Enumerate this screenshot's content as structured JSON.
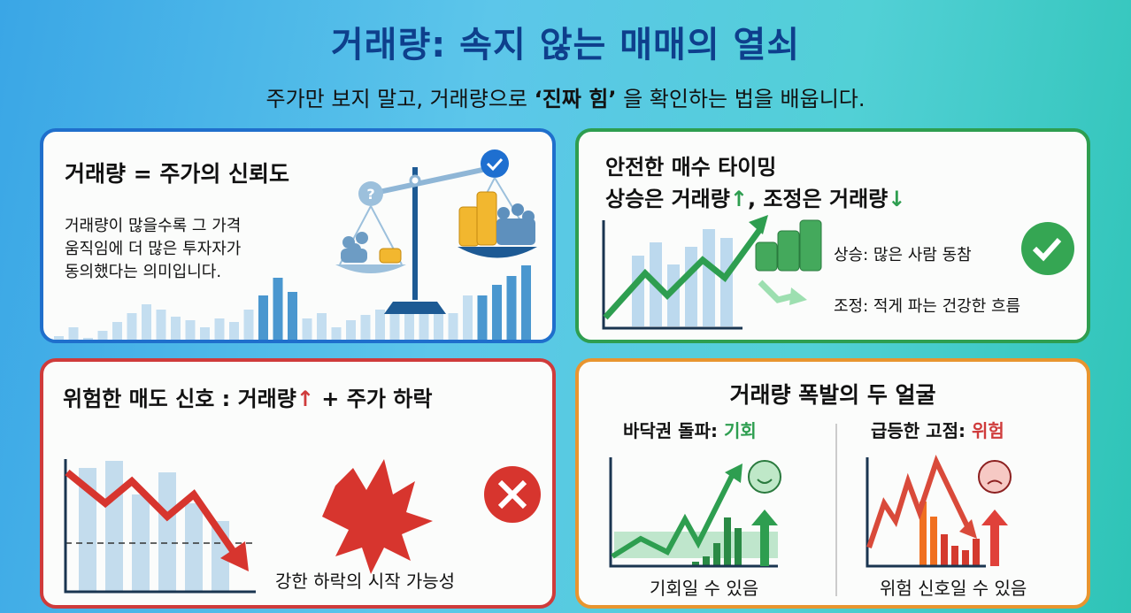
{
  "header": {
    "title": "거래량: 속지 않는 매매의 열쇠",
    "subtitle_pre": "주가만 보지 말고, 거래량으로 ",
    "subtitle_bold": "‘진짜 힘’",
    "subtitle_post": " 을 확인하는 법을 배웁니다."
  },
  "card1": {
    "title": "거래량 = 주가의 신뢰도",
    "body": [
      "거래량이 많을수록 그 가격",
      "움직임에 더 많은 투자자가",
      "동의했다는 의미입니다."
    ],
    "icons": [
      "balance-scale-icon",
      "question-icon",
      "check-icon",
      "people-icon",
      "coins-icon"
    ],
    "color": "#1f6fcc"
  },
  "card2": {
    "title1": "안전한 매수 타이밍",
    "title2_a": "상승은 거래량",
    "title2_b": ", 조정은 거래량",
    "up": "↑",
    "down": "↓",
    "rise": "상승: 많은 사람 동참",
    "correction": "조정: 적게 파는 건강한 흐름",
    "color": "#2e9e50"
  },
  "card3": {
    "title_a": "위험한 매도 신호 : 거래량",
    "up": "↑",
    "title_b": " + 주가 하락",
    "caption": "강한 하락의 시작 가능성",
    "color": "#cf3b3b"
  },
  "card4": {
    "title": "거래량 폭발의 두 얼굴",
    "left_label": "바닥권 돌파: ",
    "left_accent": "기회",
    "left_caption": "기회일 수 있음",
    "right_label": "급등한 고점: ",
    "right_accent": "위험",
    "right_caption": "위험 신호일 수 있음",
    "color": "#e8952f"
  }
}
